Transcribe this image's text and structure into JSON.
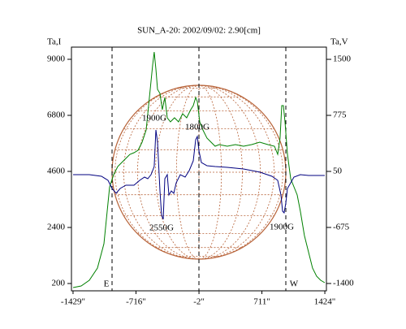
{
  "chart_data": {
    "type": "line",
    "title": "SUN_A-20: 2002/09/02: 2.90[cm]",
    "ylabel": "Ta,I",
    "y2label": "Ta,V",
    "xlim": [
      -1447,
      1442
    ],
    "xticks": [
      {
        "value": -1429,
        "label": "-1429\""
      },
      {
        "value": -716,
        "label": "-716\""
      },
      {
        "value": -2,
        "label": "-2\""
      },
      {
        "value": 711,
        "label": "711\""
      },
      {
        "value": 1424,
        "label": "1424\""
      }
    ],
    "ylim": [
      -87,
      9478
    ],
    "yticks": [
      200,
      2400,
      4600,
      6800,
      9000
    ],
    "y2lim": [
      -1495,
      1658
    ],
    "y2ticks": [
      -1400,
      -675,
      50,
      775,
      1500
    ],
    "annotations": [
      "1900G",
      "1800G",
      "2550G",
      "1900G",
      "E",
      "W"
    ],
    "series": [
      {
        "name": "Ta,I",
        "color": "#008000",
        "x": [
          -1429,
          -1337,
          -1245,
          -1153,
          -1079,
          -1042,
          -1015,
          -969,
          -923,
          -877,
          -831,
          -785,
          -739,
          -693,
          -647,
          -601,
          -573,
          -545,
          -527,
          -509,
          -490,
          -472,
          -444,
          -417,
          -389,
          -361,
          -325,
          -279,
          -233,
          -187,
          -141,
          -95,
          -67,
          -39,
          -21,
          7,
          43,
          89,
          135,
          181,
          227,
          319,
          411,
          503,
          595,
          687,
          779,
          853,
          890,
          917,
          936,
          954,
          973,
          1000,
          1037,
          1074,
          1111,
          1147,
          1193,
          1239,
          1285,
          1331,
          1377,
          1423
        ],
        "values": [
          42,
          105,
          329,
          807,
          1763,
          3038,
          3995,
          4473,
          4792,
          4951,
          5111,
          5270,
          5334,
          5429,
          5748,
          6226,
          7183,
          8139,
          8777,
          9287,
          8617,
          7820,
          7661,
          7023,
          7502,
          6705,
          6545,
          6705,
          6545,
          6864,
          6705,
          7023,
          7183,
          7502,
          7342,
          6545,
          6226,
          5908,
          5748,
          5589,
          5653,
          5589,
          5653,
          5589,
          5653,
          5748,
          5653,
          5589,
          5270,
          5908,
          7183,
          7183,
          6545,
          5270,
          4314,
          3995,
          3676,
          3038,
          2082,
          1444,
          807,
          488,
          329,
          233
        ]
      },
      {
        "name": "Ta,V",
        "color": "#000080",
        "axis": "y2",
        "x": [
          -1429,
          -1245,
          -1107,
          -1033,
          -987,
          -941,
          -895,
          -831,
          -739,
          -674,
          -619,
          -582,
          -545,
          -509,
          -490,
          -472,
          -444,
          -426,
          -407,
          -389,
          -361,
          -343,
          -315,
          -288,
          -260,
          -214,
          -159,
          -113,
          -67,
          -39,
          -21,
          -3,
          25,
          89,
          181,
          319,
          503,
          687,
          825,
          890,
          927,
          945,
          963,
          982,
          1000,
          1037,
          1074,
          1147,
          1239,
          1423
        ],
        "values": [
          8,
          8,
          -13,
          -66,
          -171,
          -234,
          -171,
          -129,
          -129,
          -66,
          -24,
          -45,
          8,
          113,
          586,
          428,
          -202,
          -517,
          -570,
          -45,
          8,
          -255,
          -202,
          -234,
          -97,
          8,
          -24,
          61,
          187,
          460,
          502,
          323,
          166,
          124,
          113,
          103,
          82,
          40,
          -13,
          -66,
          -255,
          -465,
          -486,
          -360,
          -171,
          -97,
          -24,
          8,
          -3,
          -3
        ]
      }
    ]
  }
}
